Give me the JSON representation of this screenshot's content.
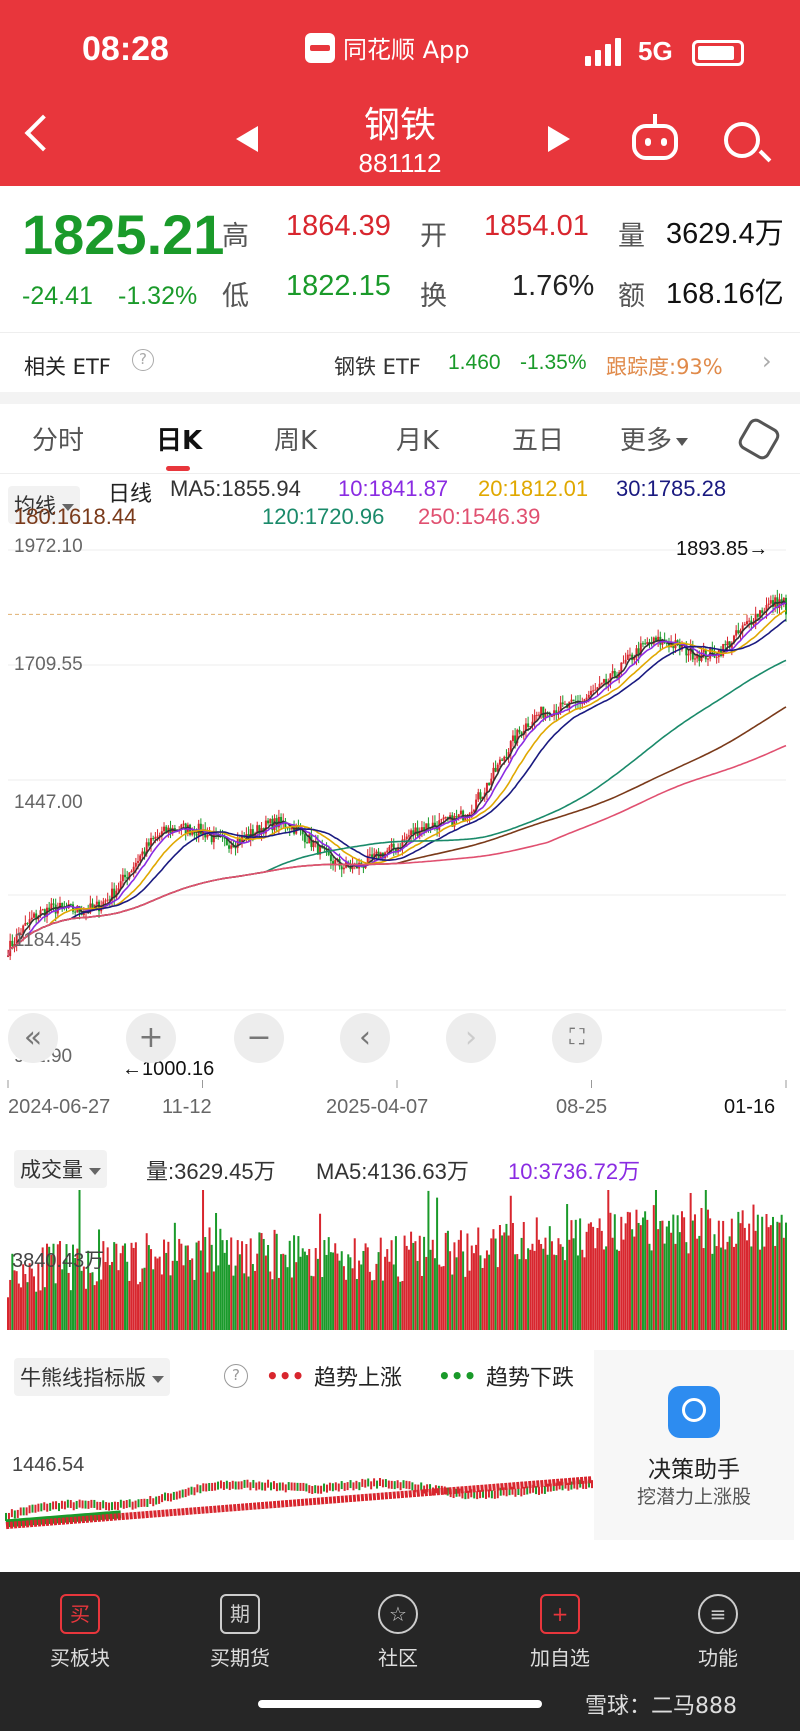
{
  "status_bar": {
    "time": "08:28",
    "app": "同花顺 App",
    "network": "5G"
  },
  "header": {
    "title": "钢铁",
    "code": "881112"
  },
  "quote": {
    "price": "1825.21",
    "change": "-24.41",
    "change_pct": "-1.32%",
    "high_label": "高",
    "high": "1864.39",
    "low_label": "低",
    "low": "1822.15",
    "open_label": "开",
    "open": "1854.01",
    "turnover_label": "换",
    "turnover": "1.76%",
    "volume_label": "量",
    "volume": "3629.4万",
    "amount_label": "额",
    "amount": "168.16亿"
  },
  "etf": {
    "label": "相关 ETF",
    "name": "钢铁 ETF",
    "price": "1.460",
    "pct": "-1.35%",
    "tracking": "跟踪度:93%"
  },
  "tabs": [
    "分时",
    "日K",
    "周K",
    "月K",
    "五日",
    "更多"
  ],
  "active_tab": "日K",
  "kline": {
    "indicator": "均线",
    "period": "日线",
    "ma5": "MA5:1855.94",
    "ma10": "10:1841.87",
    "ma20": "20:1812.01",
    "ma30": "30:1785.28",
    "ma180": "180:1618.44",
    "ma120": "120:1720.96",
    "ma250": "250:1546.39",
    "y_ticks": [
      "1972.10",
      "1709.55",
      "1447.00",
      "1184.45",
      "921.90"
    ],
    "max_label": "1893.85→",
    "min_label": "←1000.16",
    "x_ticks": [
      "2024-06-27",
      "11-12",
      "2025-04-07",
      "08-25",
      "01-16"
    ]
  },
  "volume": {
    "indicator": "成交量",
    "vol": "量:3629.45万",
    "ma5": "MA5:4136.63万",
    "ma10": "10:3736.72万",
    "y_tick": "3840.43万"
  },
  "bullbear": {
    "indicator": "牛熊线指标版",
    "up": "趋势上涨",
    "down": "趋势下跌",
    "y_tick": "1446.54"
  },
  "assistant": {
    "title": "决策助手",
    "sub": "挖潜力上涨股"
  },
  "bottom_nav": [
    {
      "icon": "买",
      "label": "买板块"
    },
    {
      "icon": "期",
      "label": "买期货"
    },
    {
      "icon": "☆",
      "label": "社区"
    },
    {
      "icon": "+",
      "label": "加自选"
    },
    {
      "icon": "≡",
      "label": "功能"
    }
  ],
  "watermark": "雪球：二马888",
  "colors": {
    "up": "#d8262e",
    "down": "#1a9a2a",
    "ma5": "#333333",
    "ma10": "#8a2be2",
    "ma20": "#e0a800",
    "ma30": "#1a1a80",
    "ma120": "#1a8a6a",
    "ma180": "#7a3a1a",
    "ma250": "#e05070"
  },
  "chart_data": {
    "type": "line",
    "title": "",
    "ylim": [
      921.9,
      1972.1
    ],
    "x": [
      "2024-06-27",
      "2024-11-12",
      "2025-04-07",
      "2025-08-25",
      "2026-01-16"
    ],
    "series": [
      {
        "name": "日线",
        "values": [
          1060,
          1350,
          1260,
          1680,
          1825
        ]
      }
    ]
  }
}
